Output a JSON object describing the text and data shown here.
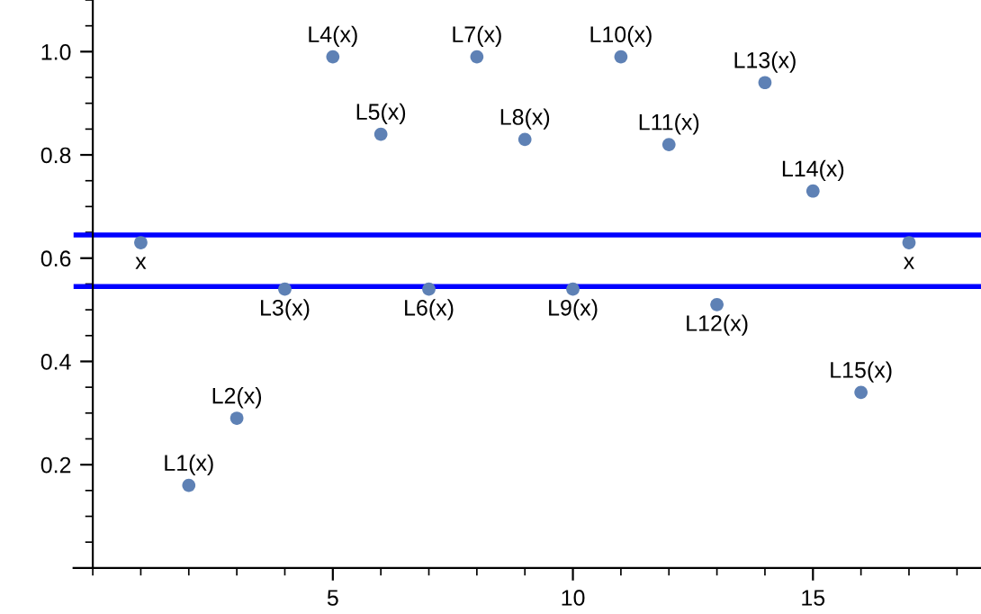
{
  "chart_data": {
    "type": "scatter",
    "x": [
      1,
      2,
      3,
      4,
      5,
      6,
      7,
      8,
      9,
      10,
      11,
      12,
      13,
      14,
      15,
      16,
      17
    ],
    "values": [
      0.63,
      0.16,
      0.29,
      0.54,
      0.99,
      0.84,
      0.54,
      0.99,
      0.83,
      0.54,
      0.99,
      0.82,
      0.51,
      0.94,
      0.73,
      0.34,
      0.63
    ],
    "color": "#5e81b5",
    "marker": "circle",
    "xlim": [
      -0.4,
      18.5
    ],
    "ylim": [
      0,
      1.1
    ],
    "xticks": [
      5,
      10,
      15
    ],
    "yticks": [
      {
        "value": 0.2,
        "label": "0.2"
      },
      {
        "value": 0.4,
        "label": "0.4"
      },
      {
        "value": 0.6,
        "label": "0.6"
      },
      {
        "value": 0.8,
        "label": "0.8"
      },
      {
        "value": 1.0,
        "label": "1.0"
      }
    ],
    "ref_lines": [
      {
        "axis": "y",
        "value": 0.645,
        "color": "#0000ff"
      },
      {
        "axis": "y",
        "value": 0.545,
        "color": "#0000ff"
      }
    ],
    "annotations": [
      {
        "text": "x",
        "x": 1,
        "y": 0.63
      },
      {
        "text": "L1(x)",
        "x": 2,
        "y": 0.16
      },
      {
        "text": "L2(x)",
        "x": 3,
        "y": 0.29
      },
      {
        "text": "L3(x)",
        "x": 4,
        "y": 0.54
      },
      {
        "text": "L4(x)",
        "x": 5,
        "y": 0.99
      },
      {
        "text": "L5(x)",
        "x": 6,
        "y": 0.84
      },
      {
        "text": "L6(x)",
        "x": 7,
        "y": 0.54
      },
      {
        "text": "L7(x)",
        "x": 8,
        "y": 0.99
      },
      {
        "text": "L8(x)",
        "x": 9,
        "y": 0.83
      },
      {
        "text": "L9(x)",
        "x": 10,
        "y": 0.54
      },
      {
        "text": "L10(x)",
        "x": 11,
        "y": 0.99
      },
      {
        "text": "L11(x)",
        "x": 12,
        "y": 0.82
      },
      {
        "text": "L12(x)",
        "x": 13,
        "y": 0.51
      },
      {
        "text": "L13(x)",
        "x": 14,
        "y": 0.94
      },
      {
        "text": "L14(x)",
        "x": 15,
        "y": 0.73
      },
      {
        "text": "L15(x)",
        "x": 16,
        "y": 0.34
      },
      {
        "text": "x",
        "x": 17,
        "y": 0.63
      }
    ],
    "grid": false
  }
}
